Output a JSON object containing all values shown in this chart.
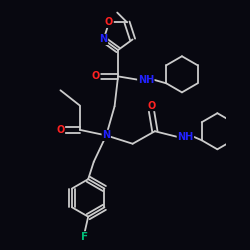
{
  "bg": "#080810",
  "bc": "#cccccc",
  "O_color": "#ff2222",
  "N_color": "#2222ff",
  "F_color": "#00bb77",
  "lw": 1.3,
  "fs": 7.0,
  "xlim": [
    -0.3,
    2.6
  ],
  "ylim": [
    0.2,
    3.8
  ]
}
